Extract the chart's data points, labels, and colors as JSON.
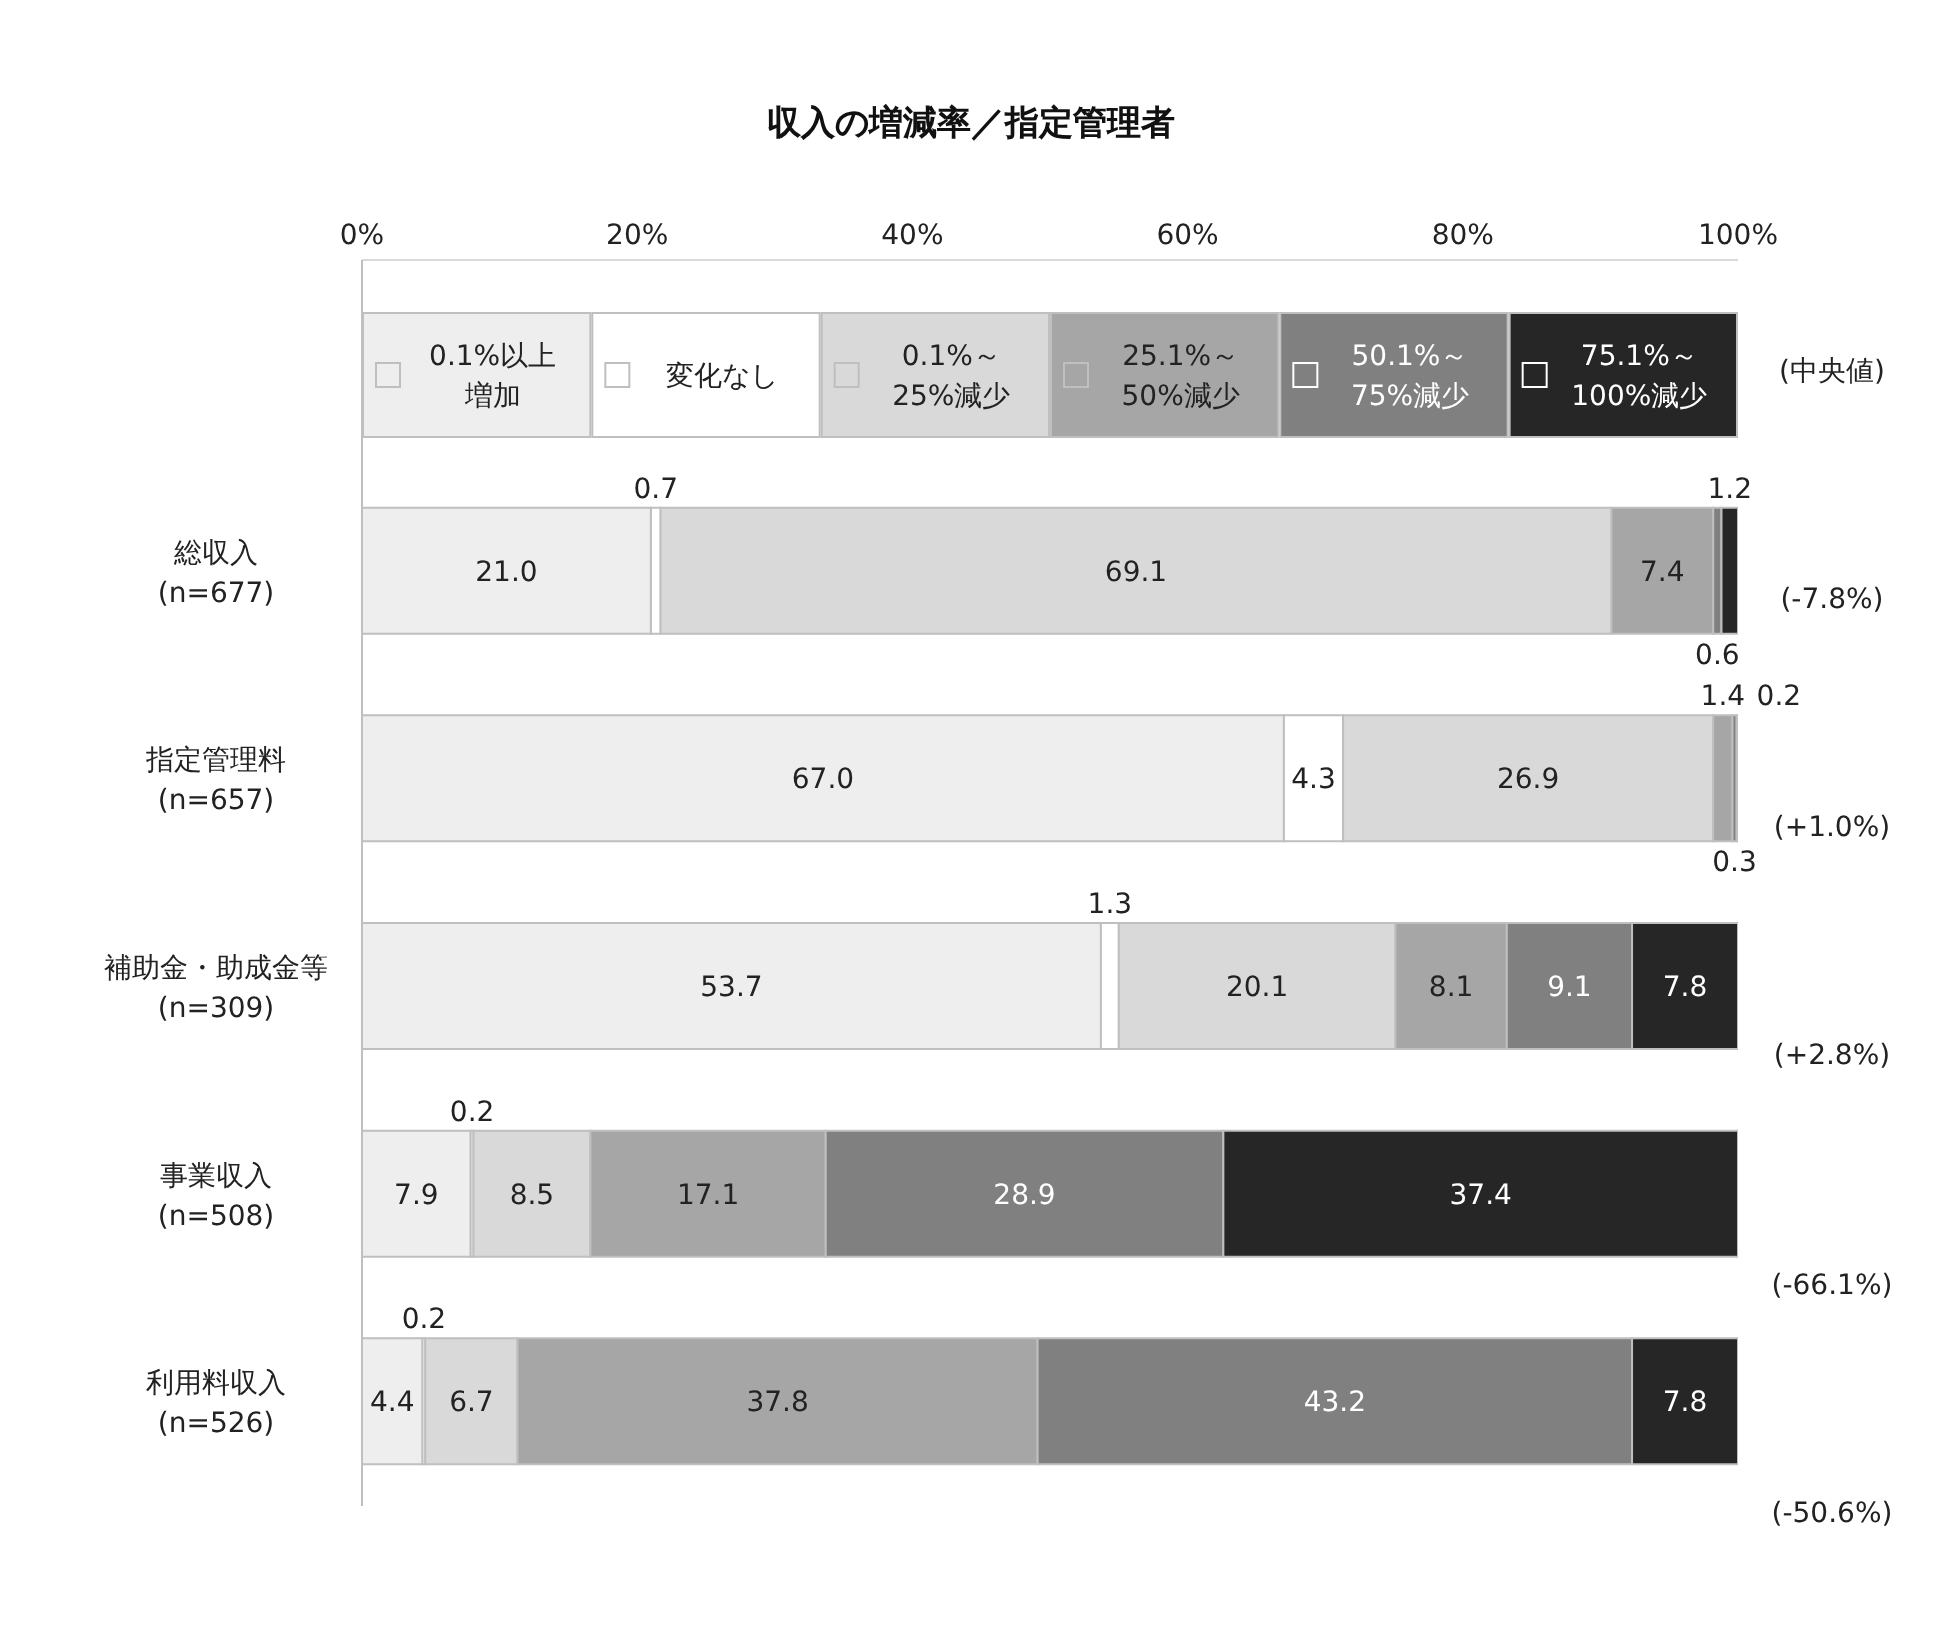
{
  "chart_data": {
    "type": "bar",
    "orientation": "horizontal",
    "stacked": true,
    "title": "収入の増減率／指定管理者",
    "categories": [
      "総収入\n(n=677)",
      "指定管理料\n(n=657)",
      "補助金・助成金等\n(n=309)",
      "事業収入\n(n=508)",
      "利用料収入\n(n=526)"
    ],
    "series": [
      {
        "name": "0.1%以上増加",
        "color": "#eeeeee",
        "values": [
          21.0,
          67.0,
          53.7,
          7.9,
          4.4
        ],
        "value_labels": [
          "21.0",
          "67.0",
          "53.7",
          "7.9",
          "4.4"
        ]
      },
      {
        "name": "変化なし",
        "color": "#ffffff",
        "values": [
          0.7,
          4.3,
          1.3,
          0.2,
          0.2
        ],
        "value_labels": [
          "0.7",
          "4.3",
          "1.3",
          "0.2",
          "0.2"
        ]
      },
      {
        "name": "0.1%～25%減少",
        "color": "#d9d9d9",
        "values": [
          69.1,
          26.9,
          20.1,
          8.5,
          6.7
        ],
        "value_labels": [
          "69.1",
          "26.9",
          "20.1",
          "8.5",
          "6.7"
        ]
      },
      {
        "name": "25.1%～50%減少",
        "color": "#a6a6a6",
        "values": [
          7.4,
          1.4,
          8.1,
          17.1,
          37.8
        ],
        "value_labels": [
          "7.4",
          "1.4",
          "8.1",
          "17.1",
          "37.8"
        ]
      },
      {
        "name": "50.1%～75%減少",
        "color": "#808080",
        "values": [
          0.6,
          0.3,
          9.1,
          28.9,
          43.2
        ],
        "value_labels": [
          "0.6",
          "0.3",
          "9.1",
          "28.9",
          "43.2"
        ]
      },
      {
        "name": "75.1%～100%減少",
        "color": "#262626",
        "values": [
          1.2,
          0.2,
          7.8,
          37.4,
          7.8
        ],
        "value_labels": [
          "1.2",
          "0.2",
          "7.8",
          "37.4",
          "7.8"
        ]
      }
    ],
    "xlim": [
      0,
      100
    ],
    "xticks": [
      {
        "value": 0,
        "label": "0%"
      },
      {
        "value": 20,
        "label": "20%"
      },
      {
        "value": 40,
        "label": "40%"
      },
      {
        "value": 60,
        "label": "60%"
      },
      {
        "value": 80,
        "label": "80%"
      },
      {
        "value": 100,
        "label": "100%"
      }
    ],
    "legend": "top",
    "grid": false,
    "annotations": [
      "(中央値)",
      "(-7.8%)",
      "(+1.0%)",
      "(+2.8%)",
      "(-66.1%)",
      "(-50.6%)"
    ]
  }
}
